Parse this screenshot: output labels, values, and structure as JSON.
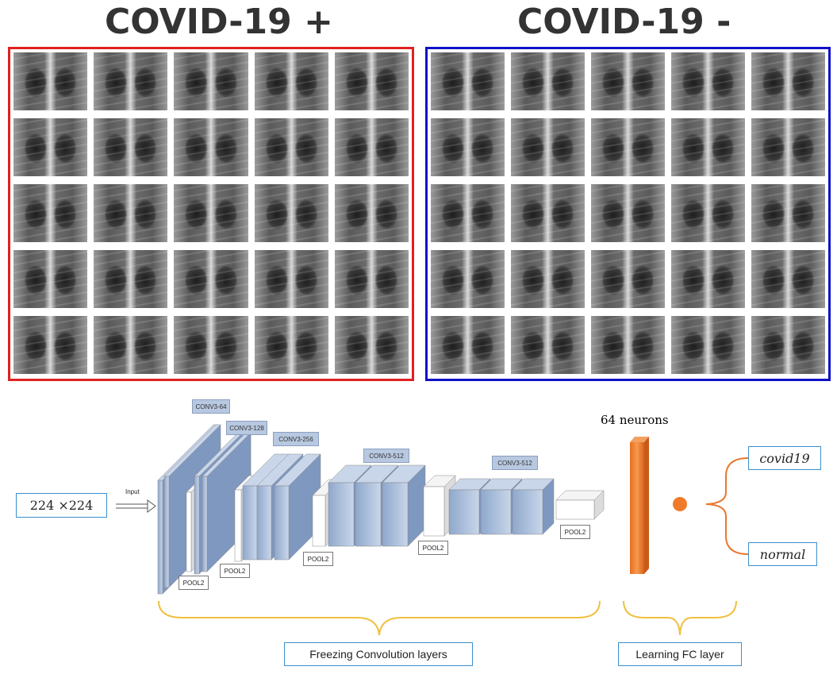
{
  "titles": {
    "positive": "COVID-19 +",
    "negative": "COVID-19 -"
  },
  "input_size": "224 ×224",
  "input_label": "Input",
  "conv_labels": [
    "CONV3-64",
    "CONV3-128",
    "CONV3-256",
    "CONV3-512",
    "CONV3-512"
  ],
  "pool_label": "POOL2",
  "fc_label": "64 neurons",
  "outputs": [
    "covid19",
    "normal"
  ],
  "brace_labels": {
    "freeze": "Freezing Convolution layers",
    "learn": "Learning FC layer"
  },
  "colors": {
    "positive_border": "#e02020",
    "negative_border": "#1010c8",
    "fc": "#f08030",
    "brace": "#f0c040",
    "output_brace": "#e87830",
    "conv": "#a8bcd8"
  }
}
